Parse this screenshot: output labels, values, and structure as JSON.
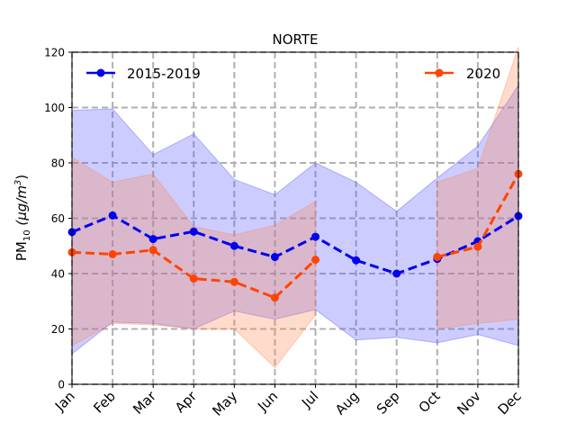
{
  "chart_data": {
    "type": "line",
    "title": "NORTE",
    "ylabel": "PM",
    "ylabel_subscript": "10",
    "ylabel_unit": " (μg/m",
    "ylabel_unit_power": "3",
    "ylabel_unit_close": ")",
    "categories": [
      "Jan",
      "Feb",
      "Mar",
      "Apr",
      "May",
      "Jun",
      "Jul",
      "Aug",
      "Sep",
      "Oct",
      "Nov",
      "Dec"
    ],
    "ylim": [
      0,
      120
    ],
    "yticks": [
      0,
      20,
      40,
      60,
      80,
      100,
      120
    ],
    "grid": true,
    "series": [
      {
        "name": "2015-2019",
        "color": "#0000ee",
        "band_color": "#5555ff",
        "style": "dashed",
        "marker": "circle",
        "values": [
          55,
          61,
          52.5,
          55.2,
          50,
          46,
          53.3,
          44.8,
          40,
          45.3,
          51.7,
          60.8
        ],
        "band_upper": [
          99,
          99.5,
          83,
          90.5,
          74,
          68.5,
          80,
          73,
          62.5,
          74.5,
          86,
          108
        ],
        "band_lower": [
          11,
          22.5,
          22,
          20,
          26.5,
          23.5,
          27,
          16,
          17,
          15,
          18,
          14
        ]
      },
      {
        "name": "2020",
        "color": "#ff4400",
        "band_color": "#ff8855",
        "style": "dashed",
        "marker": "circle",
        "values": [
          47.7,
          47,
          48.5,
          38.2,
          37,
          31.3,
          45,
          null,
          null,
          46,
          49.7,
          76
        ],
        "band_upper": [
          82,
          73,
          76,
          57,
          54,
          57.5,
          66,
          null,
          null,
          73,
          78,
          122
        ],
        "band_lower": [
          14,
          22,
          21.5,
          20,
          20,
          6,
          25,
          null,
          null,
          20,
          22,
          23.5
        ]
      }
    ],
    "legend": [
      "top-left",
      "top-right"
    ]
  }
}
